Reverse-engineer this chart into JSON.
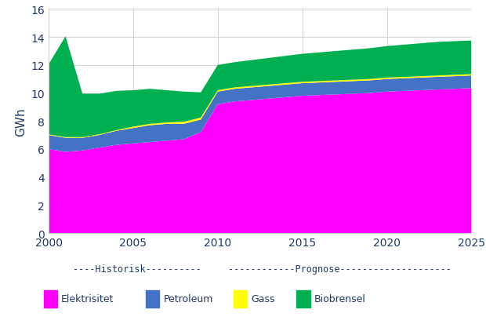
{
  "years": [
    2000,
    2001,
    2002,
    2003,
    2004,
    2005,
    2006,
    2007,
    2008,
    2009,
    2010,
    2011,
    2012,
    2013,
    2014,
    2015,
    2016,
    2017,
    2018,
    2019,
    2020,
    2021,
    2022,
    2023,
    2024,
    2025
  ],
  "elektrisitet": [
    6.0,
    5.8,
    5.9,
    6.1,
    6.3,
    6.4,
    6.5,
    6.6,
    6.7,
    7.2,
    9.2,
    9.4,
    9.5,
    9.6,
    9.7,
    9.8,
    9.85,
    9.9,
    9.95,
    10.0,
    10.1,
    10.15,
    10.2,
    10.25,
    10.3,
    10.35
  ],
  "petroleum": [
    1.0,
    1.0,
    0.9,
    0.9,
    1.0,
    1.1,
    1.2,
    1.2,
    1.1,
    0.9,
    0.9,
    0.9,
    0.9,
    0.9,
    0.9,
    0.9,
    0.9,
    0.9,
    0.9,
    0.9,
    0.9,
    0.9,
    0.9,
    0.9,
    0.9,
    0.9
  ],
  "gass": [
    0.05,
    0.05,
    0.05,
    0.05,
    0.05,
    0.1,
    0.1,
    0.1,
    0.15,
    0.15,
    0.1,
    0.1,
    0.1,
    0.1,
    0.1,
    0.1,
    0.1,
    0.1,
    0.1,
    0.1,
    0.1,
    0.1,
    0.1,
    0.1,
    0.1,
    0.1
  ],
  "biobrensel": [
    5.0,
    7.2,
    3.1,
    2.9,
    2.8,
    2.6,
    2.5,
    2.3,
    2.15,
    1.8,
    1.8,
    1.8,
    1.85,
    1.9,
    1.95,
    2.0,
    2.05,
    2.1,
    2.15,
    2.2,
    2.25,
    2.3,
    2.35,
    2.4,
    2.4,
    2.4
  ],
  "color_elektrisitet": "#FF00FF",
  "color_petroleum": "#4472C4",
  "color_gass": "#FFFF00",
  "color_biobrensel": "#00B050",
  "ylabel": "GWh",
  "ylim": [
    0,
    16
  ],
  "yticks": [
    0,
    2,
    4,
    6,
    8,
    10,
    12,
    14,
    16
  ],
  "xlim": [
    2000,
    2025
  ],
  "xticks": [
    2000,
    2005,
    2010,
    2015,
    2020,
    2025
  ],
  "text_color": "#1F3864",
  "legend_labels": [
    "Elektrisitet",
    "Petroleum",
    "Gass",
    "Biobrensel"
  ],
  "historisk_label": "----Historisk----------",
  "prognose_label": "------------Prognose--------------------"
}
